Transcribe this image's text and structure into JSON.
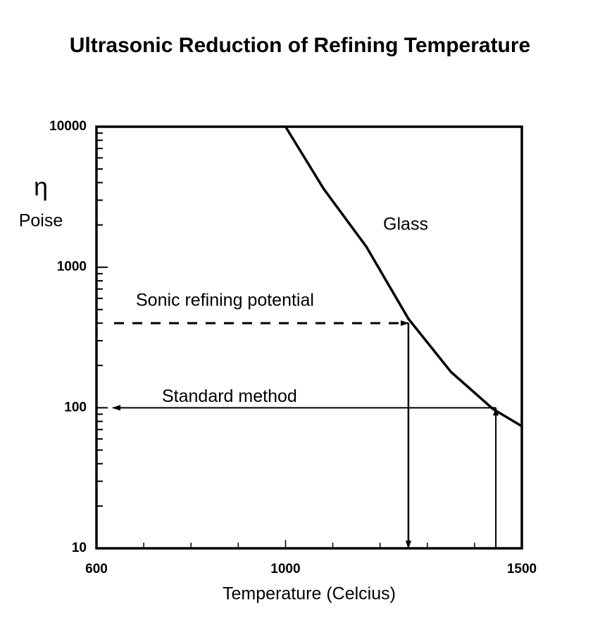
{
  "chart_data": {
    "type": "line",
    "title": "Ultrasonic Reduction of Refining Temperature",
    "xlabel": "Temperature (Celcius)",
    "ylabel": "η",
    "yunit": "Poise",
    "log_y": true,
    "xlim": [
      600,
      1500
    ],
    "xticks": [
      600,
      1000,
      1500
    ],
    "xminorticks": [
      700,
      800,
      900,
      1100,
      1200,
      1300,
      1400
    ],
    "ylim": [
      10,
      10000
    ],
    "yticks": [
      10,
      100,
      1000,
      10000
    ],
    "yminorticks": [
      20,
      30,
      40,
      50,
      60,
      70,
      80,
      90,
      200,
      300,
      400,
      500,
      600,
      700,
      800,
      900,
      2000,
      3000,
      4000,
      5000,
      6000,
      7000,
      8000,
      9000
    ],
    "series": [
      {
        "name": "Glass",
        "color": "#000000",
        "x": [
          1000,
          1081,
          1171,
          1260,
          1350,
          1439,
          1500
        ],
        "values": [
          10000,
          3600,
          1400,
          430,
          180,
          98,
          74
        ]
      }
    ],
    "reference_lines": [
      {
        "label": "Sonic refining potential",
        "viscosity": 400,
        "temperature": 1260,
        "dashed": true
      },
      {
        "label": "Standard method",
        "viscosity": 100,
        "temperature": 1445,
        "dashed": false
      }
    ]
  }
}
